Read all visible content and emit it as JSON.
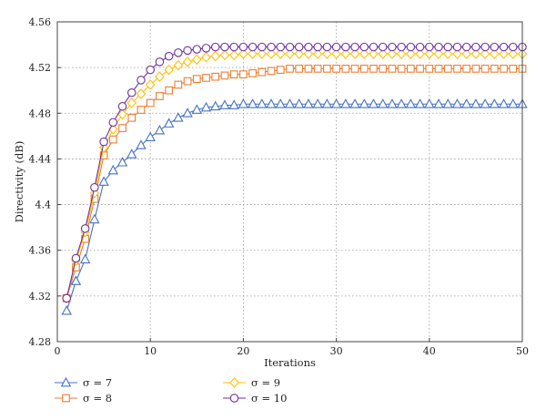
{
  "chart_data": {
    "type": "line",
    "title": "",
    "xlabel": "Iterations",
    "ylabel": "Directivity (dB)",
    "xlim": [
      0,
      50
    ],
    "ylim": [
      4.28,
      4.56
    ],
    "x_ticks": [
      0,
      10,
      20,
      30,
      40,
      50
    ],
    "y_ticks": [
      "4.28",
      "4.32",
      "4.36",
      "4.4",
      "4.44",
      "4.48",
      "4.52",
      "4.56"
    ],
    "grid": true,
    "legend_position": "bottom",
    "x": [
      1,
      2,
      3,
      4,
      5,
      6,
      7,
      8,
      9,
      10,
      11,
      12,
      13,
      14,
      15,
      16,
      17,
      18,
      19,
      20,
      21,
      22,
      23,
      24,
      25,
      26,
      27,
      28,
      29,
      30,
      31,
      32,
      33,
      34,
      35,
      36,
      37,
      38,
      39,
      40,
      41,
      42,
      43,
      44,
      45,
      46,
      47,
      48,
      49,
      50
    ],
    "series": [
      {
        "name": "σ = 7",
        "color": "#4472c4",
        "marker": "triangle",
        "values": [
          4.307,
          4.333,
          4.352,
          4.387,
          4.42,
          4.43,
          4.437,
          4.444,
          4.452,
          4.459,
          4.465,
          4.471,
          4.476,
          4.48,
          4.483,
          4.485,
          4.486,
          4.487,
          4.487,
          4.488,
          4.488,
          4.488,
          4.488,
          4.488,
          4.488,
          4.488,
          4.488,
          4.488,
          4.488,
          4.488,
          4.488,
          4.488,
          4.488,
          4.488,
          4.488,
          4.488,
          4.488,
          4.488,
          4.488,
          4.488,
          4.488,
          4.488,
          4.488,
          4.488,
          4.488,
          4.488,
          4.488,
          4.488,
          4.488,
          4.488
        ]
      },
      {
        "name": "σ = 8",
        "color": "#ed7d31",
        "marker": "square",
        "values": [
          4.318,
          4.345,
          4.37,
          4.405,
          4.443,
          4.457,
          4.467,
          4.476,
          4.483,
          4.489,
          4.495,
          4.5,
          4.505,
          4.508,
          4.51,
          4.511,
          4.512,
          4.513,
          4.514,
          4.514,
          4.515,
          4.516,
          4.517,
          4.518,
          4.519,
          4.519,
          4.519,
          4.519,
          4.519,
          4.519,
          4.519,
          4.519,
          4.519,
          4.519,
          4.519,
          4.519,
          4.519,
          4.519,
          4.519,
          4.519,
          4.519,
          4.519,
          4.519,
          4.519,
          4.519,
          4.519,
          4.519,
          4.519,
          4.519,
          4.519
        ]
      },
      {
        "name": "σ = 9",
        "color": "#ffc000",
        "marker": "diamond",
        "values": [
          4.318,
          4.351,
          4.376,
          4.41,
          4.45,
          4.466,
          4.479,
          4.489,
          4.497,
          4.505,
          4.512,
          4.518,
          4.522,
          4.525,
          4.527,
          4.529,
          4.53,
          4.531,
          4.531,
          4.532,
          4.532,
          4.532,
          4.532,
          4.532,
          4.532,
          4.532,
          4.532,
          4.532,
          4.532,
          4.532,
          4.532,
          4.532,
          4.532,
          4.532,
          4.532,
          4.532,
          4.532,
          4.532,
          4.532,
          4.532,
          4.532,
          4.532,
          4.532,
          4.532,
          4.532,
          4.532,
          4.532,
          4.532,
          4.532,
          4.532
        ]
      },
      {
        "name": "σ = 10",
        "color": "#7030a0",
        "marker": "circle",
        "values": [
          4.318,
          4.353,
          4.379,
          4.415,
          4.455,
          4.472,
          4.486,
          4.498,
          4.509,
          4.518,
          4.525,
          4.53,
          4.533,
          4.535,
          4.536,
          4.537,
          4.538,
          4.538,
          4.538,
          4.538,
          4.538,
          4.538,
          4.538,
          4.538,
          4.538,
          4.538,
          4.538,
          4.538,
          4.538,
          4.538,
          4.538,
          4.538,
          4.538,
          4.538,
          4.538,
          4.538,
          4.538,
          4.538,
          4.538,
          4.538,
          4.538,
          4.538,
          4.538,
          4.538,
          4.538,
          4.538,
          4.538,
          4.538,
          4.538,
          4.538
        ]
      }
    ]
  }
}
